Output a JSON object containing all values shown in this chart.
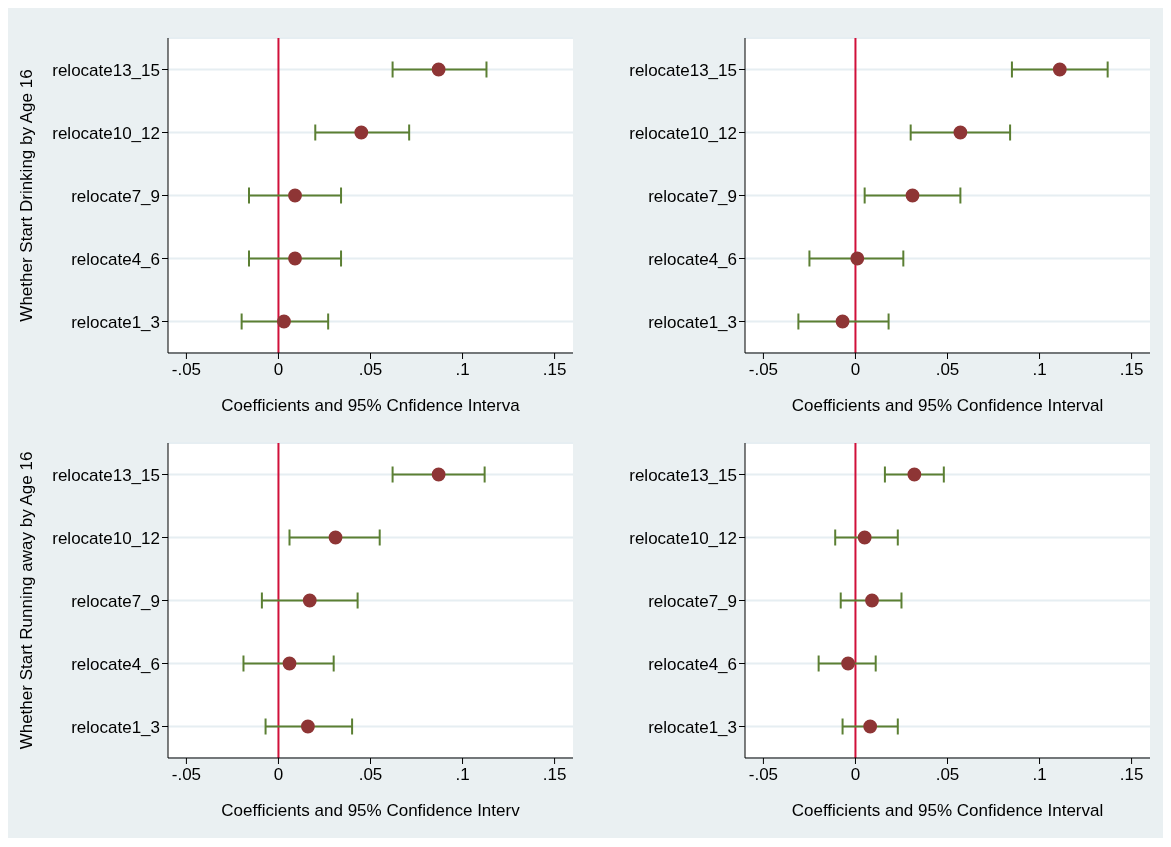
{
  "chart_data": [
    {
      "type": "scatter",
      "orientation": "horizontal",
      "ylabel": "Whether Start Drinking by Age 16",
      "xlabel": "Coefficients and 95% Cnfidence Interva",
      "categories": [
        "relocate13_15",
        "relocate10_12",
        "relocate7_9",
        "relocate4_6",
        "relocate1_3"
      ],
      "xlim": [
        -0.06,
        0.16
      ],
      "xticks": [
        {
          "value": -0.05,
          "label": "-.05"
        },
        {
          "value": 0,
          "label": "0"
        },
        {
          "value": 0.05,
          "label": ".05"
        },
        {
          "value": 0.1,
          "label": ".1"
        },
        {
          "value": 0.15,
          "label": ".15"
        }
      ],
      "grid": "y",
      "marker": "circle",
      "ref_lines": [
        {
          "axis": "x",
          "value": 0,
          "color": "#d0103a"
        }
      ],
      "series": [
        {
          "color": "#8e3535",
          "values": [
            0.087,
            0.045,
            0.009,
            0.009,
            0.003
          ],
          "errors": [
            [
              0.062,
              0.113
            ],
            [
              0.02,
              0.071
            ],
            [
              -0.016,
              0.034
            ],
            [
              -0.016,
              0.034
            ],
            [
              -0.02,
              0.027
            ]
          ]
        }
      ]
    },
    {
      "type": "scatter",
      "orientation": "horizontal",
      "xlabel": "Coefficients and 95% Confidence Interval",
      "categories": [
        "relocate13_15",
        "relocate10_12",
        "relocate7_9",
        "relocate4_6",
        "relocate1_3"
      ],
      "xlim": [
        -0.06,
        0.16
      ],
      "xticks": [
        {
          "value": -0.05,
          "label": "-.05"
        },
        {
          "value": 0,
          "label": "0"
        },
        {
          "value": 0.05,
          "label": ".05"
        },
        {
          "value": 0.1,
          "label": ".1"
        },
        {
          "value": 0.15,
          "label": ".15"
        }
      ],
      "grid": "y",
      "marker": "circle",
      "ref_lines": [
        {
          "axis": "x",
          "value": 0,
          "color": "#d0103a"
        }
      ],
      "series": [
        {
          "color": "#8e3535",
          "values": [
            0.111,
            0.057,
            0.031,
            0.001,
            -0.007
          ],
          "errors": [
            [
              0.085,
              0.137
            ],
            [
              0.03,
              0.084
            ],
            [
              0.005,
              0.057
            ],
            [
              -0.025,
              0.026
            ],
            [
              -0.031,
              0.018
            ]
          ]
        }
      ]
    },
    {
      "type": "scatter",
      "orientation": "horizontal",
      "ylabel": "Whether Start Running away by Age 16",
      "xlabel": "Coefficients and 95% Confidence Interv",
      "categories": [
        "relocate13_15",
        "relocate10_12",
        "relocate7_9",
        "relocate4_6",
        "relocate1_3"
      ],
      "xlim": [
        -0.06,
        0.16
      ],
      "xticks": [
        {
          "value": -0.05,
          "label": "-.05"
        },
        {
          "value": 0,
          "label": "0"
        },
        {
          "value": 0.05,
          "label": ".05"
        },
        {
          "value": 0.1,
          "label": ".1"
        },
        {
          "value": 0.15,
          "label": ".15"
        }
      ],
      "grid": "y",
      "marker": "circle",
      "ref_lines": [
        {
          "axis": "x",
          "value": 0,
          "color": "#d0103a"
        }
      ],
      "series": [
        {
          "color": "#8e3535",
          "values": [
            0.087,
            0.031,
            0.017,
            0.006,
            0.016
          ],
          "errors": [
            [
              0.062,
              0.112
            ],
            [
              0.006,
              0.055
            ],
            [
              -0.009,
              0.043
            ],
            [
              -0.019,
              0.03
            ],
            [
              -0.007,
              0.04
            ]
          ]
        }
      ]
    },
    {
      "type": "scatter",
      "orientation": "horizontal",
      "xlabel": "Coefficients and 95% Confidence Interval",
      "categories": [
        "relocate13_15",
        "relocate10_12",
        "relocate7_9",
        "relocate4_6",
        "relocate1_3"
      ],
      "xlim": [
        -0.06,
        0.16
      ],
      "xticks": [
        {
          "value": -0.05,
          "label": "-.05"
        },
        {
          "value": 0,
          "label": "0"
        },
        {
          "value": 0.05,
          "label": ".05"
        },
        {
          "value": 0.1,
          "label": ".1"
        },
        {
          "value": 0.15,
          "label": ".15"
        }
      ],
      "grid": "y",
      "marker": "circle",
      "ref_lines": [
        {
          "axis": "x",
          "value": 0,
          "color": "#d0103a"
        }
      ],
      "series": [
        {
          "color": "#8e3535",
          "values": [
            0.032,
            0.005,
            0.009,
            -0.004,
            0.008
          ],
          "errors": [
            [
              0.016,
              0.048
            ],
            [
              -0.011,
              0.023
            ],
            [
              -0.008,
              0.025
            ],
            [
              -0.02,
              0.011
            ],
            [
              -0.007,
              0.023
            ]
          ]
        }
      ]
    }
  ]
}
